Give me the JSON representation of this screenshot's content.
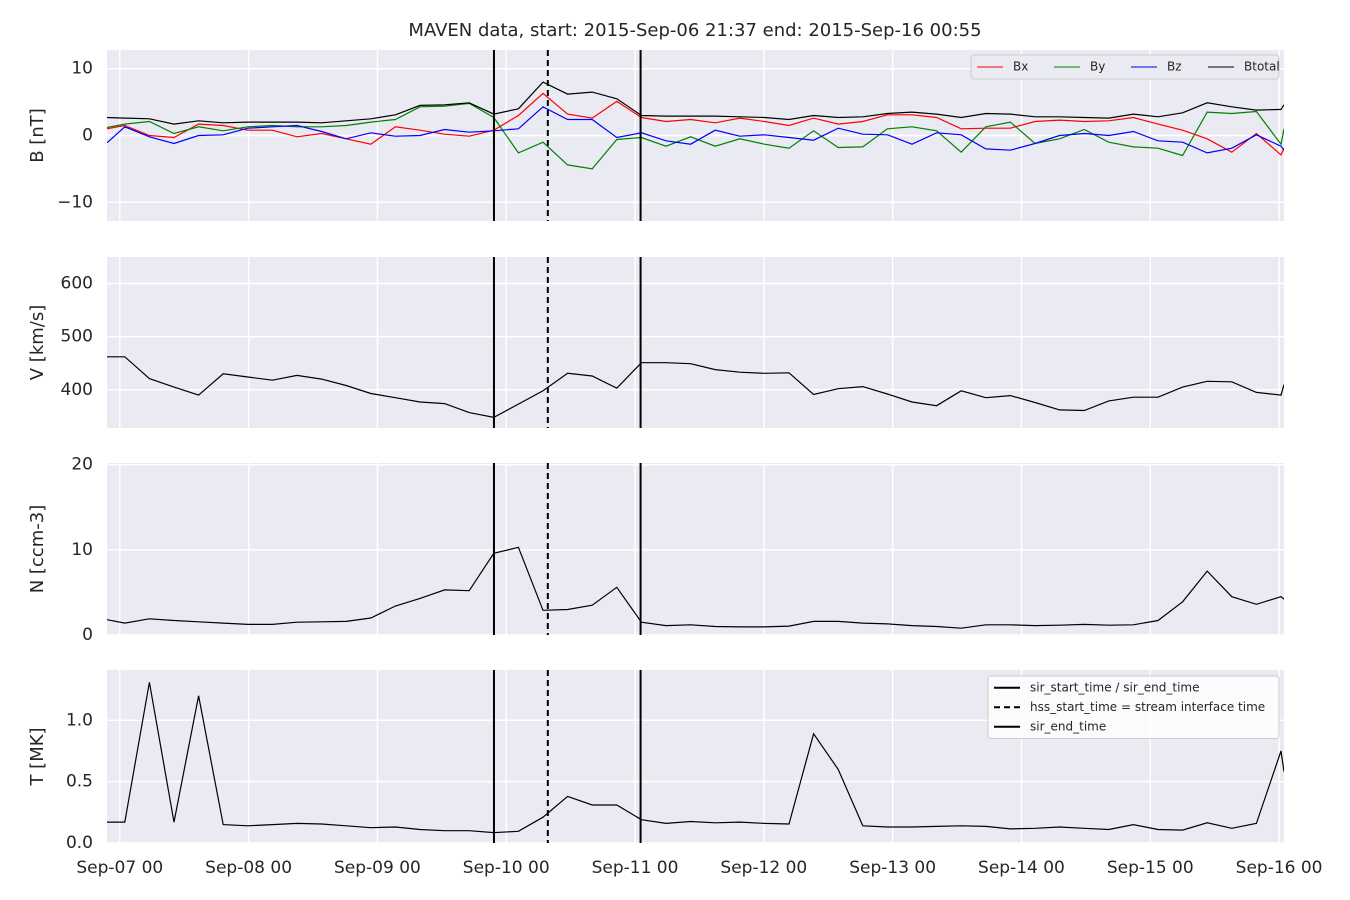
{
  "title": "MAVEN data, start: 2015-Sep-06 21:37  end: 2015-Sep-16 00:55",
  "x_axis": {
    "x": [
      "2015-09-06 21:37",
      "2015-09-07 00:56",
      "2015-09-07 05:31",
      "2015-09-07 10:06",
      "2015-09-07 14:41",
      "2015-09-07 19:16",
      "2015-09-07 23:51",
      "2015-09-08 04:26",
      "2015-09-08 09:01",
      "2015-09-08 13:36",
      "2015-09-08 18:11",
      "2015-09-08 22:46",
      "2015-09-09 03:21",
      "2015-09-09 07:56",
      "2015-09-09 12:31",
      "2015-09-09 17:06",
      "2015-09-09 21:41",
      "2015-09-10 02:16",
      "2015-09-10 06:51",
      "2015-09-10 11:26",
      "2015-09-10 16:01",
      "2015-09-10 20:36",
      "2015-09-11 01:11",
      "2015-09-11 05:46",
      "2015-09-11 10:21",
      "2015-09-11 14:56",
      "2015-09-11 19:31",
      "2015-09-12 00:06",
      "2015-09-12 04:41",
      "2015-09-12 09:16",
      "2015-09-12 13:51",
      "2015-09-12 18:26",
      "2015-09-12 23:01",
      "2015-09-13 03:36",
      "2015-09-13 08:11",
      "2015-09-13 12:46",
      "2015-09-13 17:21",
      "2015-09-13 21:56",
      "2015-09-14 02:31",
      "2015-09-14 07:06",
      "2015-09-14 11:41",
      "2015-09-14 16:16",
      "2015-09-14 20:51",
      "2015-09-15 01:26",
      "2015-09-15 06:01",
      "2015-09-15 10:36",
      "2015-09-15 15:11",
      "2015-09-15 19:46",
      "2015-09-16 00:21",
      "2015-09-16 00:55"
    ],
    "xlim": [
      "2015-09-06 21:37",
      "2015-09-16 00:55"
    ],
    "xticks": [
      {
        "value": "2015-09-07 00:00",
        "label": "Sep-07 00"
      },
      {
        "value": "2015-09-08 00:00",
        "label": "Sep-08 00"
      },
      {
        "value": "2015-09-09 00:00",
        "label": "Sep-09 00"
      },
      {
        "value": "2015-09-10 00:00",
        "label": "Sep-10 00"
      },
      {
        "value": "2015-09-11 00:00",
        "label": "Sep-11 00"
      },
      {
        "value": "2015-09-12 00:00",
        "label": "Sep-12 00"
      },
      {
        "value": "2015-09-13 00:00",
        "label": "Sep-13 00"
      },
      {
        "value": "2015-09-14 00:00",
        "label": "Sep-14 00"
      },
      {
        "value": "2015-09-15 00:00",
        "label": "Sep-15 00"
      },
      {
        "value": "2015-09-16 00:00",
        "label": "Sep-16 00"
      }
    ],
    "grid": true
  },
  "events": [
    {
      "name": "sir_start_time / sir_end_time",
      "x": "2015-09-09 21:43",
      "style": "solid",
      "color": "black"
    },
    {
      "name": "hss_start_time = stream interface time",
      "x": "2015-09-10 07:45",
      "style": "dashed",
      "color": "black"
    },
    {
      "name": "sir_end_time",
      "x": "2015-09-11 01:02",
      "style": "solid",
      "color": "black"
    }
  ],
  "chart_data": [
    {
      "type": "line",
      "ylabel": "B [nT]",
      "ylim": [
        -12.8,
        12.8
      ],
      "yticks": [
        {
          "value": -10,
          "label": "−10"
        },
        0,
        10
      ],
      "legend": "upper right",
      "legend_columns": 4,
      "series": [
        {
          "name": "Bx",
          "color": "red",
          "values": [
            1.0,
            1.5,
            0.0,
            -0.3,
            1.7,
            1.5,
            0.8,
            0.8,
            -0.2,
            0.3,
            -0.5,
            -1.3,
            1.3,
            0.8,
            0.2,
            -0.1,
            0.8,
            3.0,
            6.3,
            3.2,
            2.6,
            5.1,
            2.7,
            2.1,
            2.4,
            1.9,
            2.6,
            2.1,
            1.5,
            2.6,
            1.7,
            2.1,
            3.1,
            3.1,
            2.7,
            1.0,
            1.1,
            1.1,
            2.1,
            2.3,
            2.1,
            2.2,
            2.7,
            1.7,
            0.8,
            -0.5,
            -2.5,
            0.3,
            -2.9,
            -1.9
          ]
        },
        {
          "name": "By",
          "color": "green",
          "values": [
            1.2,
            1.7,
            2.1,
            0.3,
            1.3,
            0.7,
            1.3,
            1.5,
            1.3,
            1.3,
            1.5,
            2.0,
            2.4,
            4.3,
            4.4,
            4.8,
            2.7,
            -2.6,
            -1.0,
            -4.4,
            -5.0,
            -0.6,
            -0.3,
            -1.6,
            -0.2,
            -1.6,
            -0.5,
            -1.3,
            -1.9,
            0.7,
            -1.8,
            -1.7,
            1.0,
            1.3,
            0.7,
            -2.5,
            1.3,
            2.0,
            -1.2,
            -0.5,
            0.9,
            -1.0,
            -1.7,
            -1.9,
            -3.0,
            3.5,
            3.3,
            3.6,
            -1.3,
            1.0
          ]
        },
        {
          "name": "Bz",
          "color": "blue",
          "values": [
            -1.1,
            1.3,
            -0.2,
            -1.2,
            0.0,
            0.1,
            1.1,
            1.3,
            1.5,
            0.6,
            -0.5,
            0.4,
            -0.1,
            0.0,
            0.9,
            0.5,
            0.7,
            1.0,
            4.3,
            2.4,
            2.4,
            -0.3,
            0.4,
            -0.8,
            -1.3,
            0.8,
            -0.1,
            0.1,
            -0.3,
            -0.7,
            1.1,
            0.2,
            0.1,
            -1.3,
            0.4,
            0.1,
            -2.0,
            -2.2,
            -1.2,
            0.0,
            0.3,
            0.0,
            0.6,
            -0.8,
            -1.0,
            -2.6,
            -1.9,
            0.1,
            -1.6,
            -2.2
          ]
        },
        {
          "name": "Btotal",
          "color": "black",
          "values": [
            2.7,
            2.6,
            2.5,
            1.7,
            2.2,
            1.9,
            2.0,
            2.0,
            2.0,
            1.9,
            2.2,
            2.5,
            3.1,
            4.5,
            4.6,
            4.9,
            3.2,
            4.0,
            8.0,
            6.2,
            6.5,
            5.5,
            3.0,
            2.9,
            2.9,
            2.9,
            2.8,
            2.7,
            2.4,
            3.0,
            2.7,
            2.8,
            3.3,
            3.5,
            3.2,
            2.7,
            3.3,
            3.2,
            2.8,
            2.8,
            2.7,
            2.6,
            3.2,
            2.8,
            3.4,
            4.9,
            4.3,
            3.8,
            3.9,
            4.6
          ]
        }
      ]
    },
    {
      "type": "line",
      "ylabel": "V [km/s]",
      "ylim": [
        328,
        650
      ],
      "yticks": [
        400,
        500,
        600
      ],
      "series": [
        {
          "color": "black",
          "values": [
            462,
            462,
            421,
            405,
            390,
            430,
            424,
            418,
            427,
            420,
            408,
            393,
            385,
            377,
            374,
            357,
            348,
            373,
            398,
            431,
            426,
            403,
            451,
            451,
            449,
            438,
            433,
            431,
            432,
            391,
            402,
            406,
            392,
            377,
            370,
            398,
            385,
            389,
            376,
            362,
            361,
            379,
            386,
            386,
            405,
            416,
            415,
            395,
            390,
            410
          ]
        }
      ]
    },
    {
      "type": "line",
      "ylabel": "N [ccm-3]",
      "ylim": [
        0,
        20.2
      ],
      "yticks": [
        0,
        10,
        20
      ],
      "series": [
        {
          "color": "black",
          "values": [
            1.8,
            1.4,
            1.9,
            1.7,
            1.55,
            1.4,
            1.25,
            1.25,
            1.5,
            1.55,
            1.6,
            2.0,
            3.4,
            4.3,
            5.3,
            5.2,
            9.6,
            10.3,
            2.9,
            3.0,
            3.5,
            5.6,
            1.5,
            1.1,
            1.2,
            1.0,
            0.95,
            0.95,
            1.05,
            1.6,
            1.6,
            1.4,
            1.3,
            1.1,
            1.0,
            0.8,
            1.2,
            1.2,
            1.1,
            1.15,
            1.25,
            1.15,
            1.2,
            1.7,
            3.9,
            7.5,
            4.5,
            3.6,
            4.5,
            4.2
          ]
        }
      ]
    },
    {
      "type": "line",
      "ylabel": "T [MK]",
      "ylim": [
        0,
        1.41
      ],
      "yticks": [
        {
          "value": 0,
          "label": "0.0"
        },
        {
          "value": 0.5,
          "label": "0.5"
        },
        {
          "value": 1,
          "label": "1.0"
        }
      ],
      "event_legend": "upper right",
      "series": [
        {
          "color": "black",
          "values": [
            0.17,
            0.17,
            1.31,
            0.17,
            1.2,
            0.15,
            0.14,
            0.15,
            0.16,
            0.155,
            0.14,
            0.125,
            0.13,
            0.11,
            0.1,
            0.1,
            0.085,
            0.095,
            0.21,
            0.38,
            0.31,
            0.31,
            0.19,
            0.16,
            0.175,
            0.165,
            0.17,
            0.16,
            0.155,
            0.89,
            0.6,
            0.14,
            0.13,
            0.13,
            0.135,
            0.14,
            0.135,
            0.115,
            0.12,
            0.13,
            0.12,
            0.11,
            0.15,
            0.11,
            0.105,
            0.165,
            0.12,
            0.16,
            0.75,
            0.58
          ]
        }
      ]
    }
  ]
}
